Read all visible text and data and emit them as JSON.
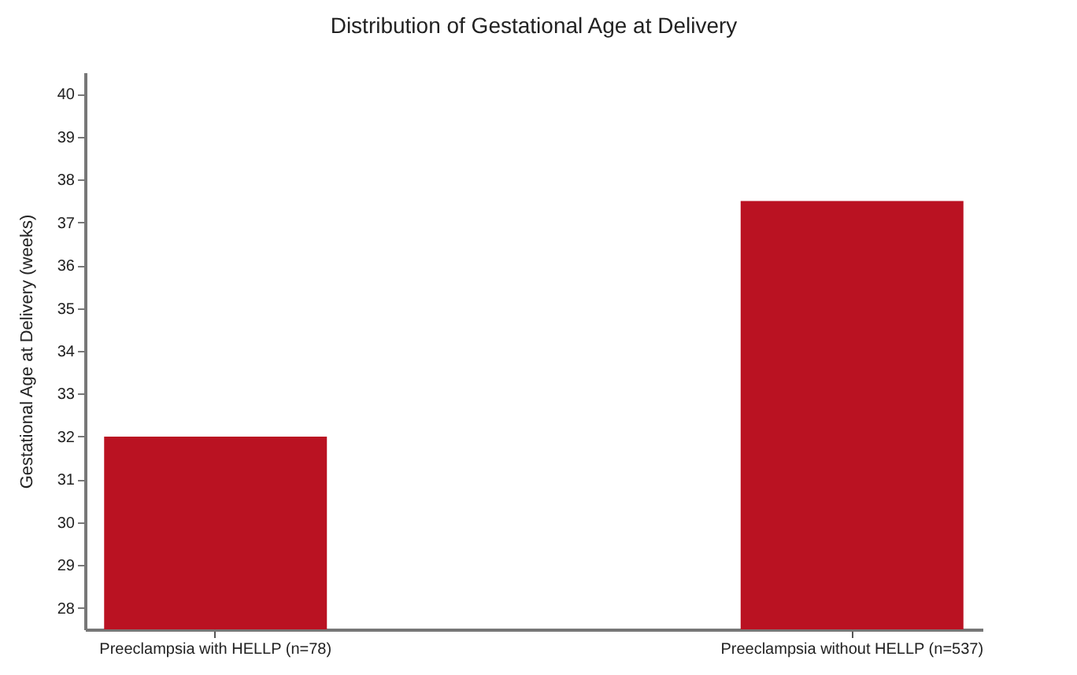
{
  "chart_data": {
    "type": "bar",
    "title": "Distribution of Gestational Age at Delivery",
    "ylabel": "Gestational Age at Delivery (weeks)",
    "categories": [
      "Preeclampsia with HELLP (n=78)",
      "Preeclampsia without HELLP (n=537)"
    ],
    "values": [
      32,
      37.5
    ],
    "color": "#ba1222",
    "ylim": [
      27.5,
      40.5
    ],
    "yticks": [
      28,
      29,
      30,
      31,
      32,
      33,
      34,
      35,
      36,
      37,
      38,
      39,
      40
    ],
    "grid": false
  }
}
